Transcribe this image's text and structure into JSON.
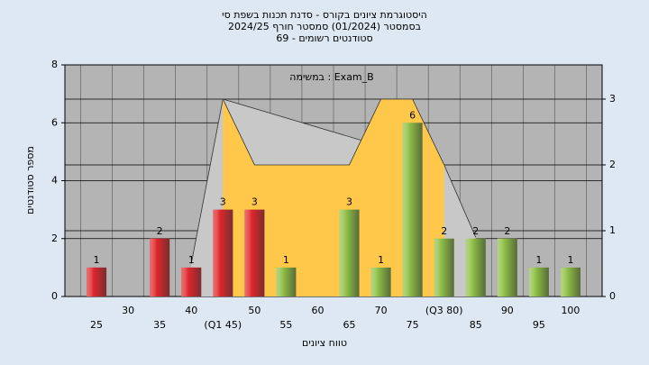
{
  "chart_data": {
    "type": "bar",
    "title": "היסטוגרמת ציונים בקורס - סדנת תכנות בשפת סי",
    "subtitle": "בסמסטר  (01/2024)  סמסטר חורף 2024/25",
    "subtitle2": "69 - סטודנטים רשומים",
    "annotation": "במשימה : Exam_B",
    "xlabel": "טווח ציונים",
    "ylabel": "מספר סטודנטים",
    "categories": [
      "25",
      "30",
      "35",
      "40",
      "(Q1 45)",
      "50",
      "55",
      "60",
      "65",
      "70",
      "75",
      "(Q3 80)",
      "85",
      "90",
      "95",
      "100"
    ],
    "values": [
      1,
      null,
      2,
      1,
      3,
      3,
      1,
      null,
      3,
      1,
      6,
      2,
      2,
      2,
      1,
      1
    ],
    "colors": [
      "#e0262b",
      "#e0262b",
      "#e0262b",
      "#e0262b",
      "#e0262b",
      "#e0262b",
      "#8ebf45",
      "#8ebf45",
      "#8ebf45",
      "#8ebf45",
      "#8ebf45",
      "#8ebf45",
      "#8ebf45",
      "#8ebf45",
      "#8ebf45",
      "#8ebf45"
    ],
    "series": [
      {
        "axis": "y2",
        "color": "#c8c8c8",
        "values": [
          null,
          null,
          null,
          0.5,
          3,
          null,
          null,
          null,
          null,
          null,
          null,
          2,
          0.9,
          null,
          null,
          null
        ]
      },
      {
        "axis": "y2",
        "color": "#ffc84a",
        "values": [
          null,
          null,
          null,
          null,
          3,
          2,
          2,
          2,
          2,
          3,
          3,
          2,
          null,
          null,
          null,
          null
        ]
      }
    ],
    "ylim": [
      0,
      8
    ],
    "yticks": [
      0,
      2,
      4,
      6,
      8
    ],
    "y2lim": [
      0,
      3.52
    ],
    "y2ticks": [
      0,
      1,
      2,
      3
    ],
    "background": "#b4b4b4"
  }
}
